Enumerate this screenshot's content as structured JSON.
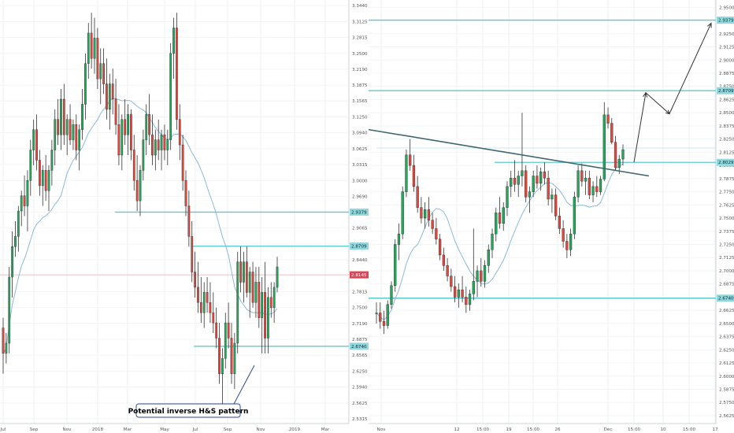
{
  "chart_data": [
    {
      "type": "candlestick",
      "panel": "left",
      "timeframe_hint": "weekly",
      "x_tick_labels": [
        "Jul",
        "Sep",
        "Nov",
        "2018",
        "Mar",
        "May",
        "Jul",
        "Sep",
        "Nov",
        "2019",
        "Mar"
      ],
      "y_tick_labels": [
        "3.3440",
        "3.3125",
        "3.2815",
        "3.2500",
        "3.2190",
        "3.1875",
        "3.1565",
        "3.1250",
        "3.0940",
        "3.0625",
        "3.0315",
        "3.0000",
        "2.9690",
        "2.9375",
        "2.9065",
        "2.8750",
        "2.8440",
        "2.8125",
        "2.7815",
        "2.7500",
        "2.7190",
        "2.6875",
        "2.6565",
        "2.6250",
        "2.5940",
        "2.5625",
        "2.5315"
      ],
      "ylim": [
        2.522,
        3.355
      ],
      "price_tags": [
        {
          "label": "2.9379",
          "value": 2.9379,
          "kind": "level"
        },
        {
          "label": "2.8709",
          "value": 2.8709,
          "kind": "level"
        },
        {
          "label": "2.8145",
          "value": 2.8145,
          "kind": "last"
        },
        {
          "label": "2.6740",
          "value": 2.674,
          "kind": "level"
        }
      ],
      "horizontal_levels": [
        2.9379,
        2.8709,
        2.674
      ],
      "candles_ohlc": [
        [
          2.71,
          2.73,
          2.62,
          2.66
        ],
        [
          2.66,
          2.7,
          2.64,
          2.68
        ],
        [
          2.68,
          2.83,
          2.66,
          2.81
        ],
        [
          2.81,
          2.9,
          2.77,
          2.87
        ],
        [
          2.87,
          2.92,
          2.85,
          2.89
        ],
        [
          2.89,
          2.95,
          2.86,
          2.94
        ],
        [
          2.94,
          2.98,
          2.91,
          2.97
        ],
        [
          2.97,
          3.01,
          2.93,
          2.95
        ],
        [
          2.95,
          3.02,
          2.9,
          3.0
        ],
        [
          3.0,
          3.08,
          2.97,
          3.06
        ],
        [
          3.06,
          3.12,
          3.03,
          3.1
        ],
        [
          3.1,
          3.13,
          3.02,
          3.04
        ],
        [
          3.04,
          3.06,
          2.97,
          2.99
        ],
        [
          2.99,
          3.03,
          2.95,
          3.02
        ],
        [
          3.02,
          3.05,
          2.96,
          2.98
        ],
        [
          2.98,
          3.03,
          2.94,
          3.02
        ],
        [
          3.02,
          3.08,
          2.99,
          3.06
        ],
        [
          3.06,
          3.14,
          3.03,
          3.12
        ],
        [
          3.12,
          3.16,
          3.07,
          3.09
        ],
        [
          3.09,
          3.18,
          3.06,
          3.16
        ],
        [
          3.16,
          3.19,
          3.07,
          3.09
        ],
        [
          3.09,
          3.13,
          3.05,
          3.12
        ],
        [
          3.12,
          3.15,
          3.07,
          3.08
        ],
        [
          3.08,
          3.12,
          3.06,
          3.11
        ],
        [
          3.11,
          3.13,
          3.04,
          3.06
        ],
        [
          3.06,
          3.11,
          3.02,
          3.1
        ],
        [
          3.1,
          3.18,
          3.08,
          3.15
        ],
        [
          3.15,
          3.25,
          3.12,
          3.23
        ],
        [
          3.23,
          3.31,
          3.2,
          3.29
        ],
        [
          3.29,
          3.33,
          3.22,
          3.24
        ],
        [
          3.24,
          3.32,
          3.21,
          3.28
        ],
        [
          3.28,
          3.3,
          3.18,
          3.2
        ],
        [
          3.2,
          3.26,
          3.15,
          3.23
        ],
        [
          3.23,
          3.26,
          3.17,
          3.19
        ],
        [
          3.19,
          3.24,
          3.12,
          3.14
        ],
        [
          3.14,
          3.21,
          3.1,
          3.19
        ],
        [
          3.19,
          3.22,
          3.13,
          3.16
        ],
        [
          3.16,
          3.2,
          3.09,
          3.11
        ],
        [
          3.11,
          3.15,
          3.03,
          3.05
        ],
        [
          3.05,
          3.13,
          3.02,
          3.12
        ],
        [
          3.12,
          3.16,
          3.07,
          3.09
        ],
        [
          3.09,
          3.15,
          3.05,
          3.13
        ],
        [
          3.13,
          3.14,
          3.04,
          3.06
        ],
        [
          3.06,
          3.09,
          2.98,
          3.0
        ],
        [
          3.0,
          3.05,
          2.94,
          2.96
        ],
        [
          2.96,
          3.03,
          2.93,
          3.02
        ],
        [
          3.02,
          3.1,
          3.0,
          3.08
        ],
        [
          3.08,
          3.15,
          3.05,
          3.13
        ],
        [
          3.13,
          3.17,
          3.07,
          3.09
        ],
        [
          3.09,
          3.13,
          3.03,
          3.05
        ],
        [
          3.05,
          3.1,
          3.02,
          3.08
        ],
        [
          3.08,
          3.12,
          3.04,
          3.06
        ],
        [
          3.06,
          3.1,
          3.02,
          3.09
        ],
        [
          3.09,
          3.11,
          3.04,
          3.06
        ],
        [
          3.06,
          3.1,
          3.03,
          3.08
        ],
        [
          3.08,
          3.27,
          3.06,
          3.25
        ],
        [
          3.25,
          3.32,
          3.2,
          3.3
        ],
        [
          3.3,
          3.33,
          3.1,
          3.12
        ],
        [
          3.12,
          3.15,
          3.04,
          3.07
        ],
        [
          3.07,
          3.09,
          2.98,
          3.0
        ],
        [
          3.0,
          3.02,
          2.93,
          2.95
        ],
        [
          2.95,
          2.98,
          2.87,
          2.89
        ],
        [
          2.89,
          2.92,
          2.8,
          2.82
        ],
        [
          2.82,
          2.86,
          2.77,
          2.79
        ],
        [
          2.79,
          2.84,
          2.74,
          2.76
        ],
        [
          2.76,
          2.81,
          2.72,
          2.74
        ],
        [
          2.74,
          2.8,
          2.71,
          2.78
        ],
        [
          2.78,
          2.81,
          2.74,
          2.76
        ],
        [
          2.76,
          2.8,
          2.72,
          2.74
        ],
        [
          2.74,
          2.78,
          2.7,
          2.72
        ],
        [
          2.72,
          2.75,
          2.67,
          2.69
        ],
        [
          2.69,
          2.72,
          2.6,
          2.62
        ],
        [
          2.62,
          2.67,
          2.56,
          2.65
        ],
        [
          2.65,
          2.74,
          2.63,
          2.72
        ],
        [
          2.72,
          2.76,
          2.67,
          2.69
        ],
        [
          2.69,
          2.72,
          2.6,
          2.62
        ],
        [
          2.62,
          2.7,
          2.59,
          2.68
        ],
        [
          2.68,
          2.86,
          2.66,
          2.84
        ],
        [
          2.84,
          2.87,
          2.78,
          2.8
        ],
        [
          2.8,
          2.86,
          2.76,
          2.84
        ],
        [
          2.84,
          2.87,
          2.77,
          2.78
        ],
        [
          2.78,
          2.83,
          2.73,
          2.82
        ],
        [
          2.82,
          2.84,
          2.75,
          2.76
        ],
        [
          2.76,
          2.83,
          2.73,
          2.8
        ],
        [
          2.8,
          2.83,
          2.71,
          2.73
        ],
        [
          2.73,
          2.81,
          2.66,
          2.78
        ],
        [
          2.78,
          2.84,
          2.66,
          2.69
        ],
        [
          2.69,
          2.79,
          2.66,
          2.77
        ],
        [
          2.77,
          2.8,
          2.73,
          2.75
        ],
        [
          2.75,
          2.8,
          2.72,
          2.79
        ],
        [
          2.79,
          2.85,
          2.78,
          2.83
        ]
      ],
      "moving_average_color": "#7fb3d5",
      "annotation": "Potential inverse H&S pattern"
    },
    {
      "type": "candlestick",
      "panel": "right",
      "timeframe_hint": "intraday",
      "x_tick_labels": [
        "Nov",
        "12",
        "15:00",
        "19",
        "15:00",
        "26",
        "Dec",
        "15:00",
        "10",
        "15:00",
        "17"
      ],
      "y_tick_labels": [
        "2.9500",
        "2.9375",
        "2.9250",
        "2.9125",
        "2.9000",
        "2.8875",
        "2.8750",
        "2.8625",
        "2.8500",
        "2.8375",
        "2.8250",
        "2.8125",
        "2.8000",
        "2.7875",
        "2.7750",
        "2.7625",
        "2.7500",
        "2.7375",
        "2.7250",
        "2.7125",
        "2.7000",
        "2.6875",
        "2.6750",
        "2.6625",
        "2.6500",
        "2.6375",
        "2.6250",
        "2.6125",
        "2.6000",
        "2.5875",
        "2.5750",
        "2.5625"
      ],
      "ylim": [
        2.555,
        2.957
      ],
      "price_tags": [
        {
          "label": "2.9379",
          "value": 2.9379,
          "kind": "level"
        },
        {
          "label": "2.8709",
          "value": 2.8709,
          "kind": "level"
        },
        {
          "label": "2.8029",
          "value": 2.8029,
          "kind": "level"
        },
        {
          "label": "2.6740",
          "value": 2.674,
          "kind": "level"
        }
      ],
      "horizontal_levels": [
        2.9379,
        2.8709,
        2.674
      ],
      "short_level": 2.8029,
      "faint_level": 2.8165,
      "trendline": {
        "from": [
          0,
          2.834
        ],
        "to": [
          1,
          2.79
        ]
      },
      "arrow_path": [
        2.803,
        2.869,
        2.849,
        2.935
      ],
      "candles_ohlc": [
        [
          2.66,
          2.67,
          2.65,
          2.66
        ],
        [
          2.66,
          2.67,
          2.645,
          2.652
        ],
        [
          2.652,
          2.662,
          2.64,
          2.648
        ],
        [
          2.648,
          2.672,
          2.645,
          2.668
        ],
        [
          2.668,
          2.69,
          2.664,
          2.686
        ],
        [
          2.686,
          2.73,
          2.68,
          2.725
        ],
        [
          2.725,
          2.745,
          2.71,
          2.735
        ],
        [
          2.735,
          2.78,
          2.73,
          2.775
        ],
        [
          2.775,
          2.815,
          2.77,
          2.81
        ],
        [
          2.81,
          2.825,
          2.795,
          2.8
        ],
        [
          2.8,
          2.81,
          2.775,
          2.78
        ],
        [
          2.78,
          2.79,
          2.755,
          2.76
        ],
        [
          2.76,
          2.77,
          2.745,
          2.75
        ],
        [
          2.75,
          2.765,
          2.74,
          2.758
        ],
        [
          2.758,
          2.77,
          2.742,
          2.748
        ],
        [
          2.748,
          2.755,
          2.735,
          2.74
        ],
        [
          2.74,
          2.75,
          2.725,
          2.73
        ],
        [
          2.73,
          2.735,
          2.71,
          2.715
        ],
        [
          2.715,
          2.722,
          2.7,
          2.705
        ],
        [
          2.705,
          2.712,
          2.69,
          2.695
        ],
        [
          2.695,
          2.702,
          2.68,
          2.685
        ],
        [
          2.685,
          2.695,
          2.67,
          2.675
        ],
        [
          2.675,
          2.688,
          2.665,
          2.682
        ],
        [
          2.682,
          2.695,
          2.67,
          2.675
        ],
        [
          2.675,
          2.685,
          2.66,
          2.668
        ],
        [
          2.668,
          2.682,
          2.662,
          2.678
        ],
        [
          2.678,
          2.74,
          2.672,
          2.69
        ],
        [
          2.69,
          2.705,
          2.675,
          2.7
        ],
        [
          2.7,
          2.712,
          2.685,
          2.69
        ],
        [
          2.69,
          2.71,
          2.684,
          2.705
        ],
        [
          2.705,
          2.725,
          2.698,
          2.72
        ],
        [
          2.72,
          2.74,
          2.712,
          2.735
        ],
        [
          2.735,
          2.76,
          2.728,
          2.755
        ],
        [
          2.755,
          2.77,
          2.74,
          2.745
        ],
        [
          2.745,
          2.765,
          2.738,
          2.76
        ],
        [
          2.76,
          2.785,
          2.752,
          2.78
        ],
        [
          2.78,
          2.795,
          2.77,
          2.788
        ],
        [
          2.788,
          2.805,
          2.775,
          2.782
        ],
        [
          2.782,
          2.795,
          2.77,
          2.79
        ],
        [
          2.79,
          2.85,
          2.78,
          2.795
        ],
        [
          2.795,
          2.8,
          2.765,
          2.77
        ],
        [
          2.77,
          2.78,
          2.755,
          2.775
        ],
        [
          2.775,
          2.795,
          2.77,
          2.79
        ],
        [
          2.79,
          2.8,
          2.778,
          2.783
        ],
        [
          2.783,
          2.798,
          2.776,
          2.794
        ],
        [
          2.794,
          2.803,
          2.782,
          2.788
        ],
        [
          2.788,
          2.795,
          2.762,
          2.768
        ],
        [
          2.768,
          2.778,
          2.755,
          2.772
        ],
        [
          2.772,
          2.778,
          2.748,
          2.752
        ],
        [
          2.752,
          2.76,
          2.735,
          2.74
        ],
        [
          2.74,
          2.748,
          2.722,
          2.728
        ],
        [
          2.728,
          2.735,
          2.712,
          2.72
        ],
        [
          2.72,
          2.74,
          2.714,
          2.735
        ],
        [
          2.735,
          2.775,
          2.73,
          2.77
        ],
        [
          2.77,
          2.8,
          2.765,
          2.795
        ],
        [
          2.795,
          2.802,
          2.78,
          2.785
        ],
        [
          2.785,
          2.795,
          2.772,
          2.788
        ],
        [
          2.788,
          2.795,
          2.768,
          2.772
        ],
        [
          2.772,
          2.785,
          2.765,
          2.78
        ],
        [
          2.78,
          2.79,
          2.77,
          2.775
        ],
        [
          2.775,
          2.79,
          2.772,
          2.787
        ],
        [
          2.787,
          2.86,
          2.785,
          2.848
        ],
        [
          2.848,
          2.855,
          2.835,
          2.84
        ],
        [
          2.84,
          2.845,
          2.82,
          2.822
        ],
        [
          2.822,
          2.828,
          2.795,
          2.798
        ],
        [
          2.798,
          2.81,
          2.792,
          2.806
        ],
        [
          2.806,
          2.82,
          2.8,
          2.815
        ]
      ]
    }
  ],
  "annotation": {
    "text": "Potential inverse H&S pattern"
  },
  "colors": {
    "bull_candle": "#26a65b",
    "bear_candle": "#e0483f",
    "wick": "#333333",
    "level_line": "#5fc9cf",
    "level_tag_bg": "#8fd8de",
    "last_tag_bg": "#e04457",
    "moving_average": "#7fb3d5",
    "trendline": "#40666e",
    "annotation_border": "#2e4a8c"
  }
}
